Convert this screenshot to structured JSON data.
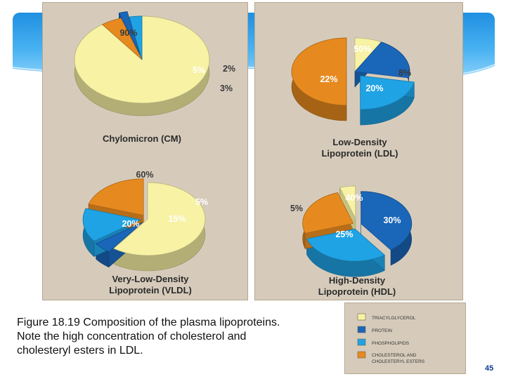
{
  "colors": {
    "triacylglycerol": "#f7f2a4",
    "protein": "#1a66b8",
    "phospholipids": "#1fa3e4",
    "cholesterol": "#e68a1f",
    "panel": "#d6cbbb",
    "accent": "#1f8fe0"
  },
  "chart_data": [
    {
      "type": "pie",
      "title": "Chylomicron (CM)",
      "labels": [
        "Triacylglycerol",
        "Cholesterol and cholesteryl esters",
        "Protein",
        "Phospholipids"
      ],
      "values": [
        90,
        5,
        2,
        3
      ],
      "value_labels": [
        "90%",
        "5%",
        "2%",
        "3%"
      ]
    },
    {
      "type": "pie",
      "title": "Low-Density Lipoprotein (LDL)",
      "labels": [
        "Cholesterol and cholesteryl esters",
        "Triacylglycerol",
        "Protein",
        "Phospholipids"
      ],
      "values": [
        50,
        8,
        20,
        22
      ],
      "value_labels": [
        "50%",
        "8%",
        "20%",
        "22%"
      ]
    },
    {
      "type": "pie",
      "title": "Very-Low-Density Lipoprotein (VLDL)",
      "labels": [
        "Triacylglycerol",
        "Protein",
        "Phospholipids",
        "Cholesterol and cholesteryl esters"
      ],
      "values": [
        60,
        5,
        15,
        20
      ],
      "value_labels": [
        "60%",
        "5%",
        "15%",
        "20%"
      ]
    },
    {
      "type": "pie",
      "title": "High-Density Lipoprotein (HDL)",
      "labels": [
        "Protein",
        "Phospholipids",
        "Cholesterol and cholesteryl esters",
        "Triacylglycerol"
      ],
      "values": [
        40,
        30,
        25,
        5
      ],
      "value_labels": [
        "40%",
        "30%",
        "25%",
        "5%"
      ]
    }
  ],
  "legend": [
    {
      "label": "TRIACYLGLYCEROL",
      "color": "#f7f2a4"
    },
    {
      "label": "PROTEIN",
      "color": "#1a66b8"
    },
    {
      "label": "PHOSPHOLIPIDS",
      "color": "#1fa3e4"
    },
    {
      "label": "CHOLESTEROL AND CHOLESTERYL ESTERS",
      "color": "#e68a1f"
    }
  ],
  "charts": {
    "cm": {
      "title_line1": "Chylomicron (CM)"
    },
    "ldl": {
      "title_line1": "Low-Density",
      "title_line2": "Lipoprotein (LDL)"
    },
    "vldl": {
      "title_line1": "Very-Low-Density",
      "title_line2": "Lipoprotein (VLDL)"
    },
    "hdl": {
      "title_line1": "High-Density",
      "title_line2": "Lipoprotein (HDL)"
    }
  },
  "caption": {
    "line1": "Figure 18.19 Composition of the plasma lipoproteins.",
    "line2": "Note the high concentration of cholesterol and",
    "line3": "cholesteryl esters in LDL."
  },
  "page_number": "45"
}
